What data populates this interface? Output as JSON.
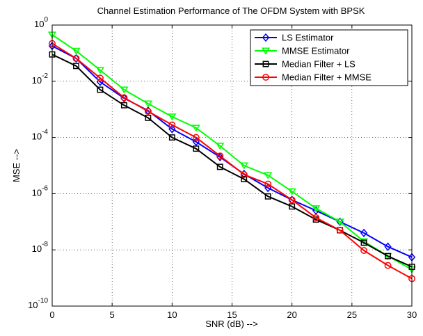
{
  "chart_data": {
    "type": "line",
    "title": "Channel Estimation Performance of The OFDM System with BPSK",
    "xlabel": "SNR (dB) -->",
    "ylabel": "MSE -->",
    "xlim": [
      0,
      30
    ],
    "ylim": [
      1e-10,
      1
    ],
    "yscale": "log",
    "grid": true,
    "legend_position": "top-right",
    "x": [
      0,
      2,
      4,
      6,
      8,
      10,
      12,
      14,
      16,
      18,
      20,
      22,
      24,
      26,
      28,
      30
    ],
    "x_ticks": [
      {
        "value": 0,
        "label": "0"
      },
      {
        "value": 5,
        "label": "5"
      },
      {
        "value": 10,
        "label": "10"
      },
      {
        "value": 15,
        "label": "15"
      },
      {
        "value": 20,
        "label": "20"
      },
      {
        "value": 25,
        "label": "25"
      },
      {
        "value": 30,
        "label": "30"
      }
    ],
    "y_ticks": [
      {
        "exp": 0,
        "base": "10",
        "sup": "0"
      },
      {
        "exp": -2,
        "base": "10",
        "sup": "-2"
      },
      {
        "exp": -4,
        "base": "10",
        "sup": "-4"
      },
      {
        "exp": -6,
        "base": "10",
        "sup": "-6"
      },
      {
        "exp": -8,
        "base": "10",
        "sup": "-8"
      },
      {
        "exp": -10,
        "base": "10",
        "sup": "-10"
      }
    ],
    "series": [
      {
        "name": "LS Estimator",
        "color": "#0000ff",
        "marker": "diamond",
        "values": [
          0.18,
          0.065,
          0.0095,
          0.0025,
          0.0009,
          0.0002,
          7e-05,
          2e-05,
          5e-06,
          1.6e-06,
          6e-07,
          2.5e-07,
          1e-07,
          4e-08,
          1.3e-08,
          5.5e-09
        ]
      },
      {
        "name": "MMSE Estimator",
        "color": "#00ff00",
        "marker": "triangle-down",
        "values": [
          0.45,
          0.12,
          0.025,
          0.005,
          0.0016,
          0.00055,
          0.00022,
          5e-05,
          1e-05,
          4.5e-06,
          1.2e-06,
          3e-07,
          1e-07,
          2e-08,
          6e-09,
          2e-09
        ]
      },
      {
        "name": "Median Filter + LS",
        "color": "#000000",
        "marker": "square",
        "values": [
          0.09,
          0.035,
          0.005,
          0.0014,
          0.0005,
          0.0001,
          4e-05,
          9e-06,
          3.3e-06,
          8e-07,
          3.5e-07,
          1.2e-07,
          5e-08,
          1.8e-08,
          6e-09,
          2.5e-09
        ]
      },
      {
        "name": "Median Filter + MMSE",
        "color": "#ff0000",
        "marker": "circle",
        "values": [
          0.22,
          0.065,
          0.013,
          0.0026,
          0.00085,
          0.00028,
          0.0001,
          2.2e-05,
          4.8e-06,
          2.2e-06,
          6e-07,
          1.4e-07,
          5e-08,
          9.5e-09,
          2.8e-09,
          9.5e-10
        ]
      }
    ]
  }
}
